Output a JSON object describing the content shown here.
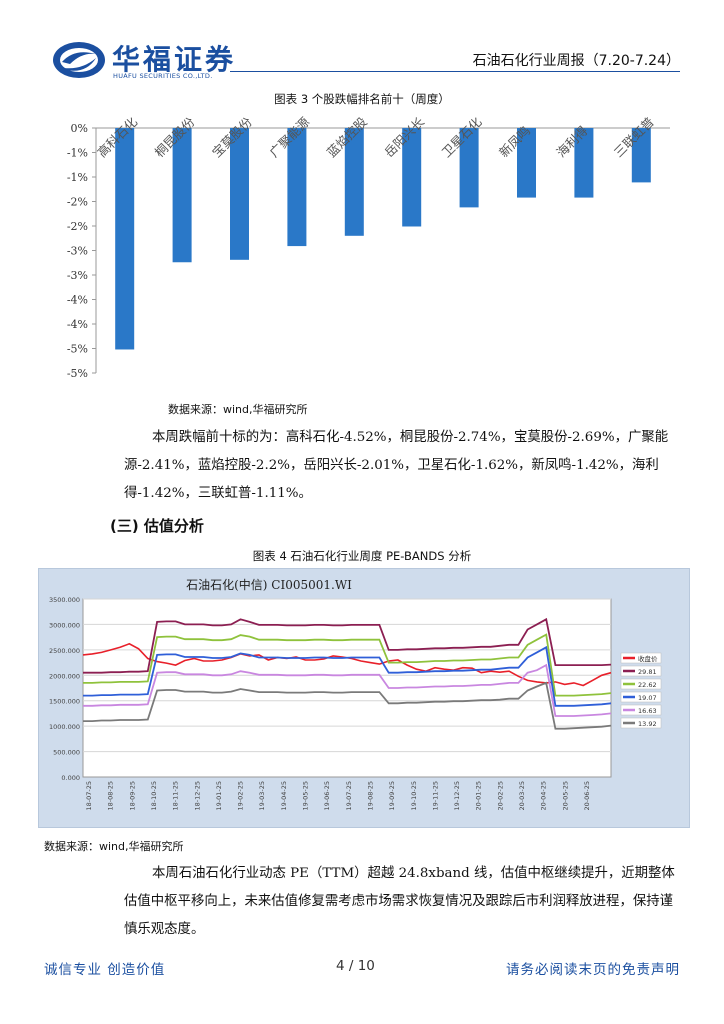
{
  "header": {
    "logo_cn": "华福证券",
    "logo_en": "HUAFU SECURITIES CO.,LTD.",
    "report_title": "石油石化行业周报（7.20-7.24）"
  },
  "figure3": {
    "caption": "图表 3 个股跌幅排名前十（周度）",
    "source": "数据来源：wind,华福研究所"
  },
  "paragraph1": "本周跌幅前十标的为：高科石化-4.52%，桐昆股份-2.74%，宝莫股份-2.69%，广聚能源-2.41%，蓝焰控股-2.2%，岳阳兴长-2.01%，卫星石化-1.62%，新凤鸣-1.42%，海利得-1.42%，三联虹普-1.11%。",
  "section_heading": "(三) 估值分析",
  "figure4": {
    "caption": "图表 4 石油石化行业周度 PE-BANDS 分析",
    "source": "数据来源：wind,华福研究所"
  },
  "paragraph2": "本周石油石化行业动态 PE（TTM）超越 24.8xband 线，估值中枢继续提升，近期整体估值中枢平移向上，未来估值修复需考虑市场需求恢复情况及跟踪后市利润释放进程，保持谨慎乐观态度。",
  "footer": {
    "left": "诚信专业 创造价值",
    "page": "4 / 10",
    "right": "请务必阅读末页的免责声明"
  },
  "chart_data": [
    {
      "type": "bar",
      "categories": [
        "高科石化",
        "桐昆股份",
        "宝莫股份",
        "广聚能源",
        "蓝焰控股",
        "岳阳兴长",
        "卫星石化",
        "新凤鸣",
        "海利得",
        "三联虹普"
      ],
      "values": [
        -4.52,
        -2.74,
        -2.69,
        -2.41,
        -2.2,
        -2.01,
        -1.62,
        -1.42,
        -1.42,
        -1.11
      ],
      "y_ticks": [
        "0%",
        "-1%",
        "-1%",
        "-2%",
        "-2%",
        "-3%",
        "-3%",
        "-4%",
        "-4%",
        "-5%",
        "-5%"
      ],
      "ylim": [
        -5.0,
        0
      ],
      "bar_color": "#2a78c8",
      "grid": false
    },
    {
      "type": "line",
      "title": "石油石化(中信) CI005001.WI",
      "x_ticks": [
        "18-07-25",
        "18-08-25",
        "18-09-25",
        "18-10-25",
        "18-11-25",
        "18-12-25",
        "19-01-25",
        "19-02-25",
        "19-03-25",
        "19-04-25",
        "19-05-25",
        "19-06-25",
        "19-07-25",
        "19-08-25",
        "19-09-25",
        "19-10-25",
        "19-11-25",
        "19-12-25",
        "20-01-25",
        "20-02-25",
        "20-03-25",
        "20-04-25",
        "20-05-25",
        "20-06-25"
      ],
      "y_ticks": [
        "0.000",
        "500.000",
        "1000.000",
        "1500.000",
        "2000.000",
        "2500.000",
        "3000.000",
        "3500.000"
      ],
      "ylim": [
        0,
        3500
      ],
      "legend_position": "right",
      "grid": true,
      "series": [
        {
          "name": "收盘价",
          "color": "#e8202a",
          "values": [
            2400,
            2420,
            2450,
            2500,
            2550,
            2620,
            2520,
            2330,
            2270,
            2240,
            2200,
            2290,
            2330,
            2280,
            2280,
            2300,
            2350,
            2420,
            2380,
            2400,
            2300,
            2350,
            2330,
            2360,
            2300,
            2300,
            2320,
            2380,
            2360,
            2330,
            2280,
            2250,
            2220,
            2280,
            2300,
            2200,
            2120,
            2080,
            2150,
            2120,
            2100,
            2150,
            2140,
            2050,
            2080,
            2060,
            2080,
            1980,
            1900,
            1870,
            1850,
            1870,
            1820,
            1850,
            1800,
            1900,
            2000,
            2050
          ]
        },
        {
          "name": "29.81",
          "color": "#8c1f52",
          "values": [
            2050,
            2050,
            2050,
            2060,
            2060,
            2070,
            2070,
            2080,
            3050,
            3060,
            3060,
            3000,
            3000,
            3000,
            2980,
            2980,
            3000,
            3100,
            3050,
            2990,
            2990,
            2990,
            2980,
            2980,
            2980,
            2990,
            2990,
            2980,
            2980,
            2990,
            2990,
            2990,
            2990,
            2500,
            2500,
            2510,
            2510,
            2520,
            2530,
            2530,
            2540,
            2540,
            2550,
            2560,
            2560,
            2580,
            2600,
            2600,
            2900,
            3000,
            3100,
            2200,
            2200,
            2200,
            2200,
            2200,
            2200,
            2210
          ]
        },
        {
          "name": "22.62",
          "color": "#8fc23c",
          "values": [
            1850,
            1850,
            1860,
            1860,
            1870,
            1870,
            1870,
            1880,
            2750,
            2760,
            2760,
            2710,
            2710,
            2710,
            2690,
            2690,
            2710,
            2790,
            2760,
            2700,
            2700,
            2700,
            2690,
            2690,
            2690,
            2700,
            2700,
            2690,
            2690,
            2700,
            2700,
            2700,
            2700,
            2250,
            2250,
            2260,
            2260,
            2270,
            2280,
            2280,
            2290,
            2290,
            2300,
            2310,
            2310,
            2330,
            2350,
            2350,
            2600,
            2700,
            2800,
            1600,
            1600,
            1600,
            1610,
            1620,
            1630,
            1650
          ]
        },
        {
          "name": "19.07",
          "color": "#2f5fd8",
          "values": [
            1600,
            1600,
            1610,
            1610,
            1620,
            1620,
            1620,
            1630,
            2400,
            2410,
            2410,
            2360,
            2360,
            2360,
            2340,
            2340,
            2360,
            2430,
            2400,
            2350,
            2350,
            2350,
            2340,
            2340,
            2340,
            2350,
            2350,
            2340,
            2340,
            2350,
            2350,
            2350,
            2350,
            2050,
            2050,
            2060,
            2060,
            2070,
            2080,
            2080,
            2090,
            2090,
            2100,
            2110,
            2110,
            2130,
            2150,
            2150,
            2350,
            2450,
            2550,
            1400,
            1400,
            1400,
            1410,
            1420,
            1430,
            1450
          ]
        },
        {
          "name": "16.63",
          "color": "#c987e0",
          "values": [
            1400,
            1400,
            1410,
            1410,
            1420,
            1420,
            1420,
            1430,
            2050,
            2060,
            2060,
            2020,
            2020,
            2020,
            2000,
            2000,
            2020,
            2080,
            2050,
            2010,
            2010,
            2010,
            2000,
            2000,
            2000,
            2010,
            2010,
            2000,
            2000,
            2010,
            2010,
            2010,
            2010,
            1750,
            1750,
            1760,
            1760,
            1770,
            1780,
            1780,
            1790,
            1790,
            1800,
            1810,
            1810,
            1830,
            1850,
            1850,
            2050,
            2100,
            2200,
            1200,
            1200,
            1200,
            1210,
            1220,
            1230,
            1250
          ]
        },
        {
          "name": "13.92",
          "color": "#7a7a7a",
          "values": [
            1100,
            1100,
            1110,
            1110,
            1120,
            1120,
            1120,
            1130,
            1700,
            1710,
            1710,
            1680,
            1680,
            1680,
            1660,
            1660,
            1680,
            1730,
            1700,
            1670,
            1670,
            1670,
            1660,
            1660,
            1660,
            1670,
            1670,
            1660,
            1660,
            1670,
            1670,
            1670,
            1670,
            1450,
            1450,
            1460,
            1460,
            1470,
            1480,
            1480,
            1490,
            1490,
            1500,
            1510,
            1510,
            1520,
            1540,
            1540,
            1700,
            1780,
            1850,
            950,
            950,
            960,
            970,
            980,
            990,
            1010
          ]
        }
      ]
    }
  ]
}
